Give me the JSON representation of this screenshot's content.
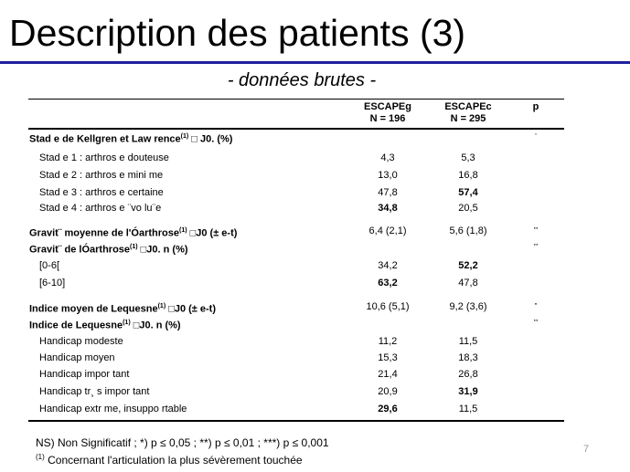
{
  "slide": {
    "title": "Description des patients (3)",
    "subtitle": "- données brutes -",
    "page_number": "7"
  },
  "table": {
    "columns": [
      {
        "line1": "ESCAPEg",
        "line2": "N = 196"
      },
      {
        "line1": "ESCAPEc",
        "line2": "N = 295"
      },
      {
        "line1": "p",
        "line2": ""
      }
    ],
    "rows": [
      {
        "type": "section",
        "label": "Stad e de Kellgren et Law rence",
        "sup": "(1)",
        "label_after": " □ J0. (%)",
        "v1": "",
        "v2": "",
        "p": "'"
      },
      {
        "type": "item",
        "label": "Stad e 1 : arthros e douteuse",
        "v1": "4,3",
        "v2": "5,3",
        "p": ""
      },
      {
        "type": "item",
        "label": "Stad e 2 : arthros e mini me",
        "v1": "13,0",
        "v2": "16,8",
        "p": ""
      },
      {
        "type": "item",
        "label": "Stad e 3 : arthros e certaine",
        "v1": "47,8",
        "v2": "57,4",
        "v2_bold": true,
        "p": ""
      },
      {
        "type": "item",
        "label": "Stad e 4 : arthros e ¨vo lu¨e",
        "v1": "34,8",
        "v1_bold": true,
        "v2": "20,5",
        "p": ""
      },
      {
        "type": "section",
        "label": "Gravit¨ moyenne de l'Óarthrose",
        "sup": "(1)",
        "label_after": " □J0 (± e-t)",
        "v1": "6,4 (2,1)",
        "v2": "5,6 (1,8)",
        "p": "'''"
      },
      {
        "type": "section",
        "label": "Gravit¨ de  lÓarthrose",
        "sup": "(1)",
        "label_after": " □J0. n (%)",
        "v1": "",
        "v2": "",
        "p": "'''"
      },
      {
        "type": "item",
        "label": "[0-6[",
        "v1": "34,2",
        "v2": "52,2",
        "v2_bold": true,
        "p": ""
      },
      {
        "type": "item",
        "label": "[6-10]",
        "v1": "63,2",
        "v1_bold": true,
        "v2": "47,8",
        "p": ""
      },
      {
        "type": "section",
        "label": "Indice moyen de Lequesne",
        "sup": "(1)",
        "label_after": " □J0 (± e-t)",
        "v1": "10,6 (5,1)",
        "v2": "9,2 (3,6)",
        "p": "''"
      },
      {
        "type": "section",
        "label": "Indice de Lequesne",
        "sup": "(1)",
        "label_after": " □J0. n (%)",
        "v1": "",
        "v2": "",
        "p": "'''"
      },
      {
        "type": "item",
        "label": "Handicap modeste",
        "v1": "11,2",
        "v2": "11,5",
        "p": ""
      },
      {
        "type": "item",
        "label": "Handicap moyen",
        "v1": "15,3",
        "v2": "18,3",
        "p": ""
      },
      {
        "type": "item",
        "label": "Handicap impor tant",
        "v1": "21,4",
        "v2": "26,8",
        "p": ""
      },
      {
        "type": "item",
        "label": "Handicap tr¸ s impor tant",
        "v1": "20,9",
        "v2": "31,9",
        "v2_bold": true,
        "p": ""
      },
      {
        "type": "item",
        "label": "Handicap extr  me, insuppo rtable",
        "v1": "29,6",
        "v1_bold": true,
        "v2": "11,5",
        "p": ""
      }
    ]
  },
  "notes": {
    "significance": "NS) Non Significatif ; *) p ≤ 0,05 ; **) p ≤ 0,01 ; ***) p ≤ 0,001",
    "footnote_mark": "(1)",
    "footnote_text": " Concernant l'articulation la plus sévèrement touchée"
  }
}
